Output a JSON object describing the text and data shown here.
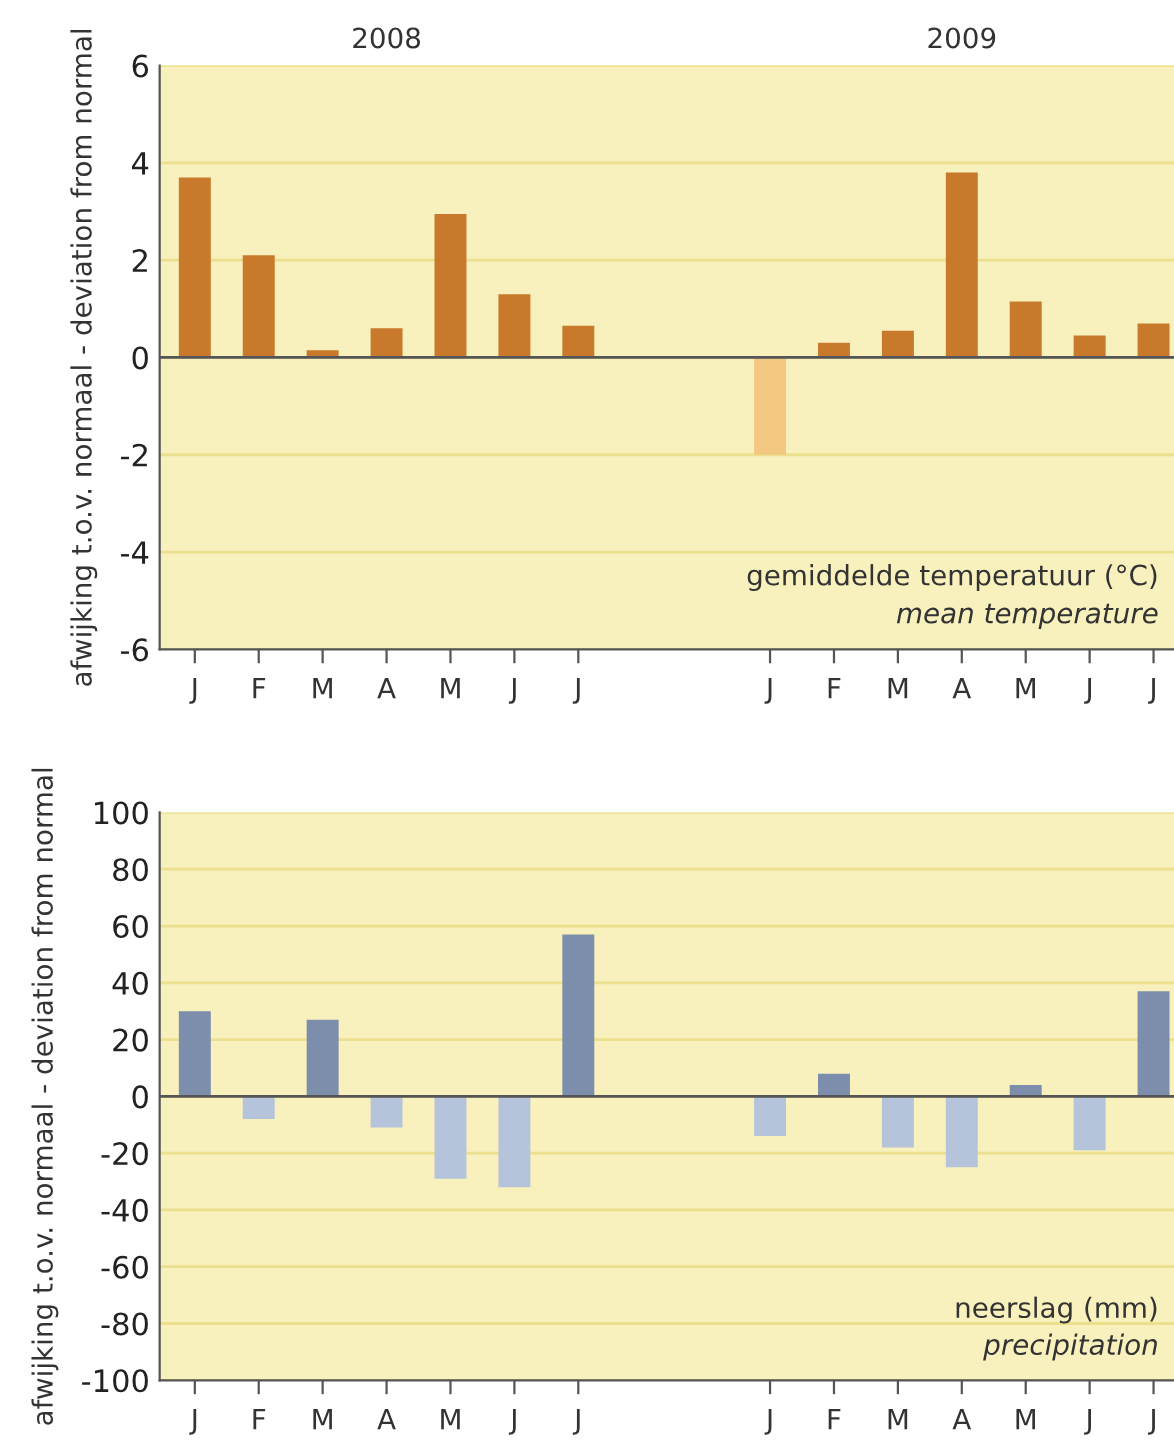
{
  "chart_data": [
    {
      "type": "bar",
      "categories": [
        "J",
        "F",
        "M",
        "A",
        "M",
        "J",
        "J",
        null,
        null,
        "J",
        "F",
        "M",
        "A",
        "M",
        "J",
        "J"
      ],
      "values": [
        3.7,
        2.1,
        0.15,
        0.6,
        2.95,
        1.3,
        0.65,
        null,
        null,
        -2.0,
        0.3,
        0.55,
        3.8,
        1.15,
        0.45,
        0.7
      ],
      "colors": [
        "#c8792c",
        "#c8792c",
        "#c8792c",
        "#c8792c",
        "#c8792c",
        "#c8792c",
        "#c8792c",
        "#c8792c",
        "#c8792c",
        "#f2c883",
        "#c8792c",
        "#c8792c",
        "#c8792c",
        "#c8792c",
        "#c8792c",
        "#c8792c"
      ],
      "ylabel": "afwijking t.o.v. normaal - deviation from normal",
      "ylim": [
        -6,
        6
      ],
      "yticks": [
        -6,
        -4,
        -2,
        0,
        2,
        4,
        6
      ],
      "grid": "y",
      "annotations": [
        "2008",
        "2009",
        "gemiddelde temperatuur (°C)",
        "mean temperature"
      ]
    },
    {
      "type": "bar",
      "categories": [
        "J",
        "F",
        "M",
        "A",
        "M",
        "J",
        "J",
        null,
        null,
        "J",
        "F",
        "M",
        "A",
        "M",
        "J",
        "J"
      ],
      "values": [
        30,
        -8,
        27,
        -11,
        -29,
        -32,
        57,
        null,
        null,
        -14,
        8,
        -18,
        -25,
        4,
        -19,
        37
      ],
      "colors": [
        "#7c8eab",
        "#b5c4da",
        "#7c8eab",
        "#b5c4da",
        "#b5c4da",
        "#b5c4da",
        "#7c8eab",
        "#7c8eab",
        "#7c8eab",
        "#b5c4da",
        "#7c8eab",
        "#b5c4da",
        "#b5c4da",
        "#7c8eab",
        "#b5c4da",
        "#7c8eab"
      ],
      "ylabel": "afwijking t.o.v. normaal - deviation from normal",
      "ylim": [
        -100,
        100
      ],
      "yticks": [
        -100,
        -80,
        -60,
        -40,
        -20,
        0,
        20,
        40,
        60,
        80,
        100
      ],
      "grid": "y",
      "annotations": [
        "neerslag (mm)",
        "precipitation"
      ]
    }
  ]
}
